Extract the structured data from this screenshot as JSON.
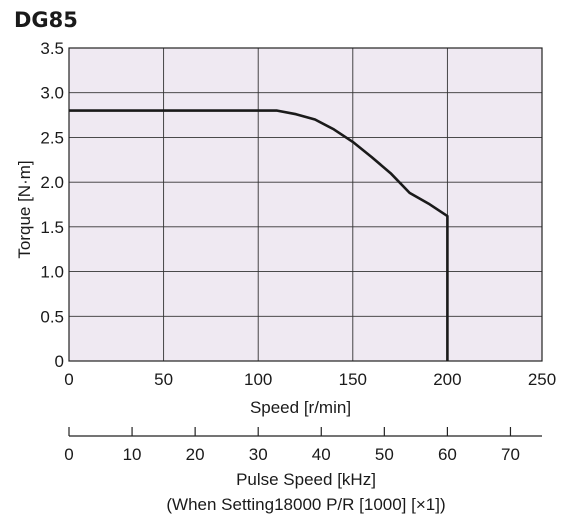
{
  "chart_data": {
    "type": "line",
    "title": "DG85",
    "xlabel": "Speed [r/min]",
    "ylabel": "Torque [N·m]",
    "xlim": [
      0,
      250
    ],
    "ylim": [
      0,
      3.5
    ],
    "x_ticks": [
      "0",
      "50",
      "100",
      "150",
      "200",
      "250"
    ],
    "y_ticks": [
      "0",
      "0.5",
      "1.0",
      "1.5",
      "2.0",
      "2.5",
      "3.0",
      "3.5"
    ],
    "grid": true,
    "plot_background": "#efe9f2",
    "line_color": "#1a1a1a",
    "series": [
      {
        "x": [
          0,
          110,
          120,
          130,
          140,
          150,
          160,
          170,
          180,
          190,
          200,
          200
        ],
        "y": [
          2.8,
          2.8,
          2.76,
          2.7,
          2.59,
          2.45,
          2.28,
          2.1,
          1.88,
          1.76,
          1.62,
          0
        ]
      }
    ],
    "secondary_axis": {
      "label_line1": "Pulse Speed [kHz]",
      "label_line2": "(When Setting18000 P/R [1000] [×1])",
      "ticks": [
        "0",
        "10",
        "20",
        "30",
        "40",
        "50",
        "60",
        "70"
      ],
      "range": [
        0,
        75
      ]
    }
  }
}
